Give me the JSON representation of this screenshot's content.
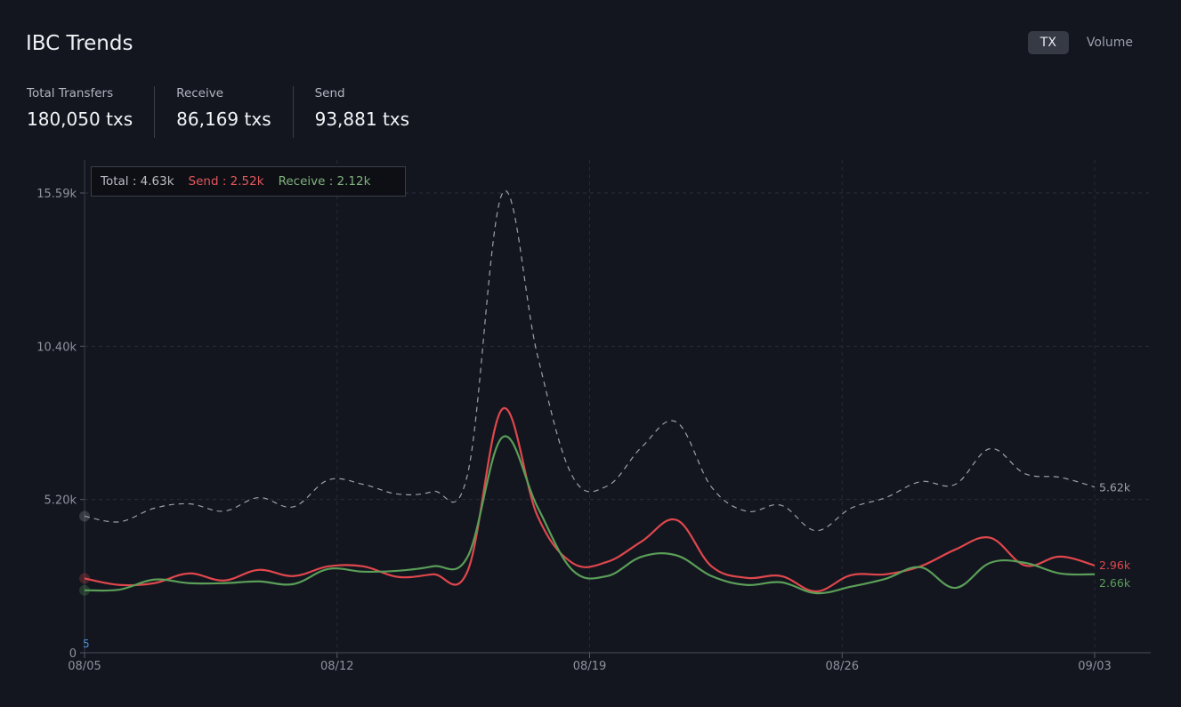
{
  "header": {
    "title": "IBC Trends",
    "toggle": [
      {
        "label": "TX",
        "active": true
      },
      {
        "label": "Volume",
        "active": false
      }
    ]
  },
  "stats": [
    {
      "label": "Total Transfers",
      "value": "180,050 txs"
    },
    {
      "label": "Receive",
      "value": "86,169 txs"
    },
    {
      "label": "Send",
      "value": "93,881 txs"
    }
  ],
  "tooltip": {
    "total": "Total : 4.63k",
    "send": "Send : 2.52k",
    "receive": "Receive : 2.12k"
  },
  "chart_data": {
    "type": "line",
    "x_tick_labels": [
      "08/05",
      "08/12",
      "08/19",
      "08/26",
      "09/03"
    ],
    "y_tick_labels": [
      "0",
      "5.20k",
      "10.40k",
      "15.59k"
    ],
    "ylim": [
      0,
      15.59
    ],
    "y_unit": "k txs",
    "grid": true,
    "axis_marker": "5",
    "colors": {
      "total": "#9ca0a8",
      "send": "#e0474c",
      "receive": "#5a9e58"
    },
    "series": [
      {
        "key": "total",
        "style": "dashed",
        "end_label": "5.62k",
        "values": [
          4.63,
          4.44,
          4.9,
          5.05,
          4.8,
          5.26,
          4.95,
          5.86,
          5.71,
          5.38,
          5.47,
          6.07,
          15.59,
          10.1,
          6.0,
          5.65,
          6.98,
          7.82,
          5.62,
          4.8,
          5.0,
          4.14,
          4.9,
          5.26,
          5.8,
          5.71,
          6.92,
          6.07,
          5.95,
          5.62
        ]
      },
      {
        "key": "send",
        "style": "solid",
        "end_label": "2.96k",
        "values": [
          2.52,
          2.3,
          2.36,
          2.69,
          2.45,
          2.81,
          2.6,
          2.93,
          2.93,
          2.57,
          2.66,
          2.78,
          8.27,
          4.65,
          3.05,
          3.08,
          3.78,
          4.5,
          2.93,
          2.54,
          2.6,
          2.08,
          2.63,
          2.66,
          2.93,
          3.5,
          3.9,
          2.96,
          3.26,
          2.96
        ]
      },
      {
        "key": "receive",
        "style": "solid",
        "end_label": "2.66k",
        "values": [
          2.12,
          2.14,
          2.48,
          2.36,
          2.36,
          2.42,
          2.33,
          2.84,
          2.75,
          2.78,
          2.93,
          3.26,
          7.31,
          4.95,
          2.81,
          2.6,
          3.26,
          3.3,
          2.6,
          2.3,
          2.39,
          2.02,
          2.24,
          2.51,
          2.9,
          2.2,
          3.05,
          3.05,
          2.69,
          2.66
        ]
      }
    ]
  }
}
